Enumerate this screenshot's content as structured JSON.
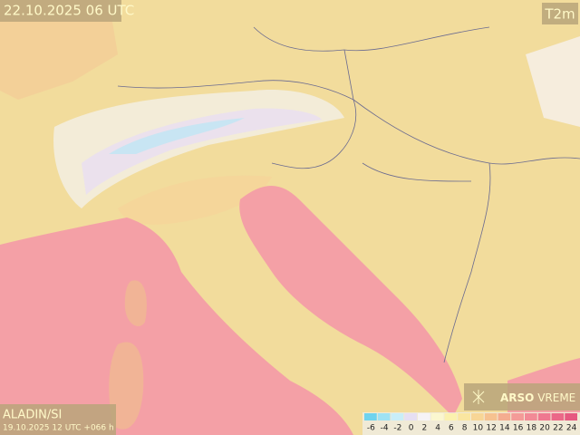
{
  "header": {
    "valid": "22.10.2025 06 UTC",
    "field": "T2m"
  },
  "footer": {
    "model": "ALADIN/SI",
    "run": "19.10.2025 12 UTC +066 h"
  },
  "brand": {
    "bold": "ARSO",
    "light": "VREME"
  },
  "legend": {
    "items": [
      {
        "value": -6,
        "color": "#6fd3ee"
      },
      {
        "value": -4,
        "color": "#9fe2f3"
      },
      {
        "value": -2,
        "color": "#c9eef8"
      },
      {
        "value": 0,
        "color": "#e6dff3"
      },
      {
        "value": 2,
        "color": "#f6f3f6"
      },
      {
        "value": 4,
        "color": "#fbf7cf"
      },
      {
        "value": 6,
        "color": "#fbf1ae"
      },
      {
        "value": 8,
        "color": "#fae6a0"
      },
      {
        "value": 10,
        "color": "#f8d696"
      },
      {
        "value": 12,
        "color": "#f6c290"
      },
      {
        "value": 14,
        "color": "#f4ad90"
      },
      {
        "value": 16,
        "color": "#f49b98"
      },
      {
        "value": 18,
        "color": "#f28a96"
      },
      {
        "value": 20,
        "color": "#ef7890"
      },
      {
        "value": 22,
        "color": "#eb6888"
      },
      {
        "value": 24,
        "color": "#e65880"
      }
    ]
  }
}
